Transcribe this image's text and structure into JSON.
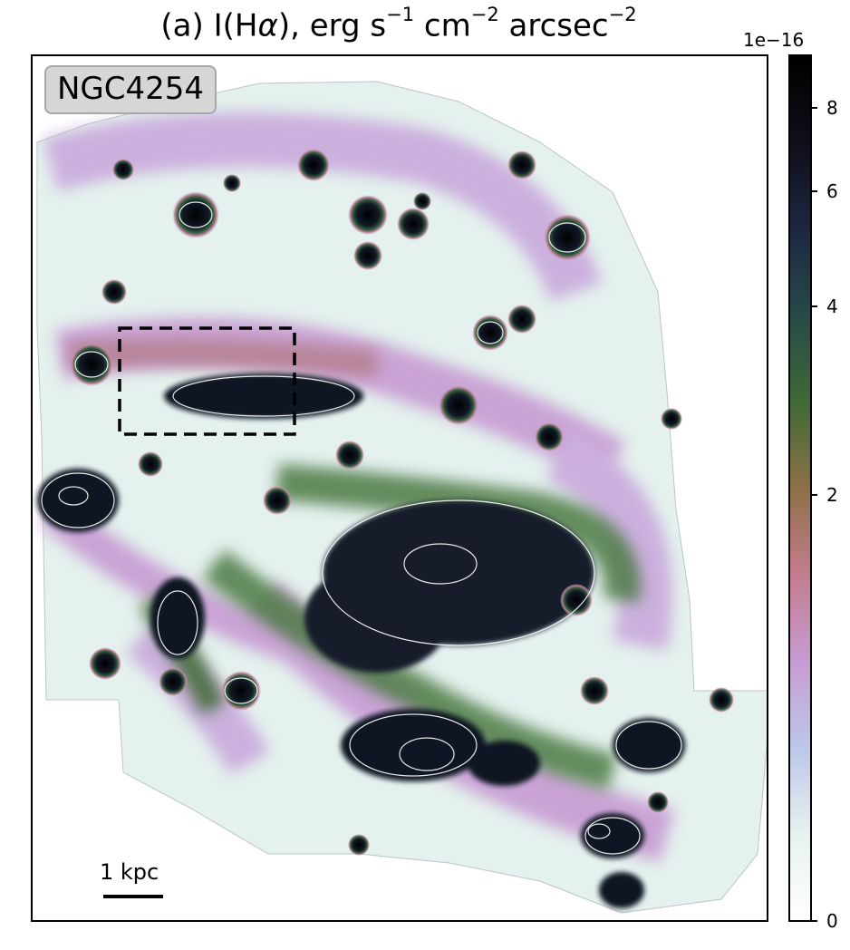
{
  "title": {
    "prefix": "(a) I(H",
    "greek": "α",
    "mid": "), erg s",
    "e1": "−1",
    "cm": " cm",
    "e2": "−2",
    "arcsec": " arcsec",
    "e3": "−2"
  },
  "galaxy_label": "NGC4254",
  "scale_bar_label": "1 kpc",
  "colorbar": {
    "multiplier": "1e−16",
    "ticks": [
      "0",
      "2",
      "4",
      "6",
      "8"
    ],
    "colors": [
      "#ffffff",
      "#e6f2ee",
      "#bcc7ea",
      "#c79bd3",
      "#c47c8e",
      "#8e7047",
      "#3f6a35",
      "#264a49",
      "#1c2740",
      "#0f0e1a",
      "#000000"
    ]
  }
}
